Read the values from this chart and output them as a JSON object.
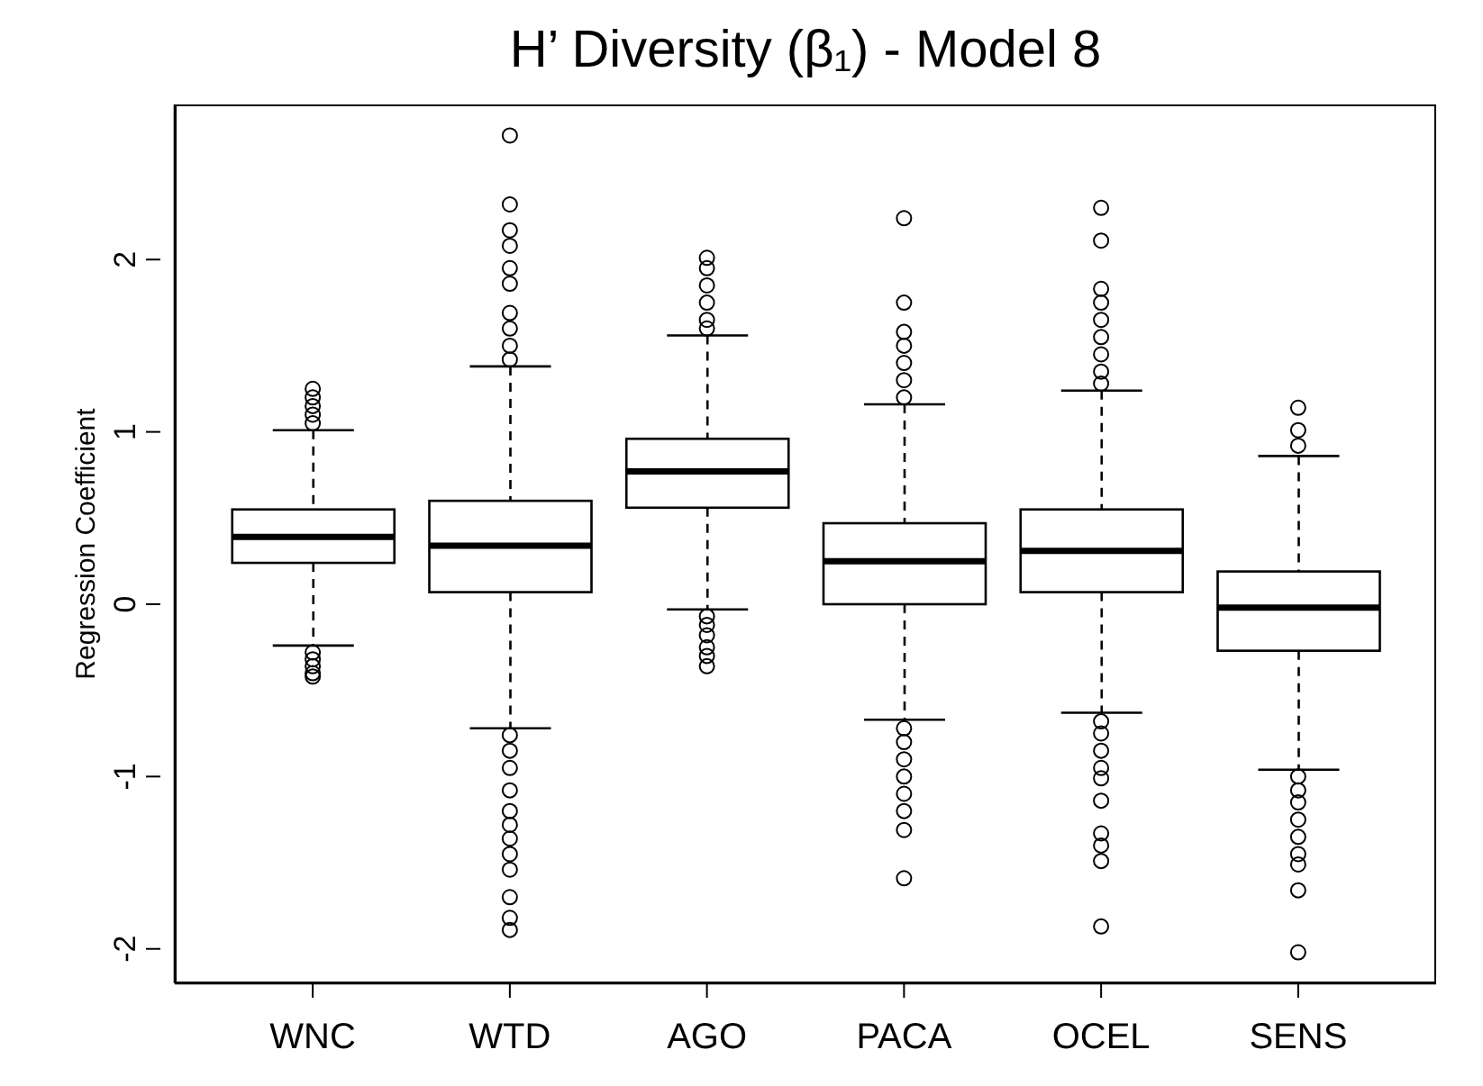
{
  "chart_data": {
    "type": "box",
    "title": "H’ Diversity (β₁) - Model 8",
    "ylabel": "Regression Coefficient",
    "categories": [
      "WNC",
      "WTD",
      "AGO",
      "PACA",
      "OCEL",
      "SENS"
    ],
    "boxes": [
      {
        "low": -0.24,
        "q1": 0.24,
        "median": 0.39,
        "q3": 0.55,
        "high": 1.01,
        "outliers": [
          1.05,
          1.1,
          1.15,
          1.2,
          1.25,
          -0.28,
          -0.32,
          -0.36,
          -0.4,
          -0.42
        ]
      },
      {
        "low": -0.72,
        "q1": 0.07,
        "median": 0.34,
        "q3": 0.6,
        "high": 1.38,
        "outliers": [
          2.72,
          2.32,
          2.17,
          2.08,
          1.95,
          1.86,
          1.69,
          1.6,
          1.5,
          1.42,
          -0.76,
          -0.85,
          -0.95,
          -1.08,
          -1.2,
          -1.28,
          -1.36,
          -1.45,
          -1.54,
          -1.7,
          -1.82,
          -1.89
        ]
      },
      {
        "low": -0.03,
        "q1": 0.56,
        "median": 0.77,
        "q3": 0.96,
        "high": 1.56,
        "outliers": [
          2.01,
          1.95,
          1.85,
          1.75,
          1.65,
          1.6,
          -0.07,
          -0.12,
          -0.18,
          -0.25,
          -0.3,
          -0.36
        ]
      },
      {
        "low": -0.67,
        "q1": 0.0,
        "median": 0.25,
        "q3": 0.47,
        "high": 1.16,
        "outliers": [
          2.24,
          1.75,
          1.58,
          1.5,
          1.4,
          1.3,
          1.2,
          -0.72,
          -0.8,
          -0.9,
          -1.0,
          -1.1,
          -1.2,
          -1.31,
          -1.59
        ]
      },
      {
        "low": -0.63,
        "q1": 0.07,
        "median": 0.31,
        "q3": 0.55,
        "high": 1.24,
        "outliers": [
          2.3,
          2.11,
          1.83,
          1.75,
          1.65,
          1.55,
          1.45,
          1.35,
          1.28,
          -0.68,
          -0.75,
          -0.85,
          -0.95,
          -1.01,
          -1.14,
          -1.33,
          -1.4,
          -1.49,
          -1.87
        ]
      },
      {
        "low": -0.96,
        "q1": -0.27,
        "median": -0.02,
        "q3": 0.19,
        "high": 0.86,
        "outliers": [
          1.14,
          1.01,
          0.92,
          -1.0,
          -1.08,
          -1.15,
          -1.25,
          -1.35,
          -1.45,
          -1.51,
          -1.66,
          -2.02
        ]
      }
    ],
    "ylim": [
      -2.2,
      2.9
    ],
    "yticks": [
      -2,
      -1,
      0,
      1,
      2
    ],
    "grid": false,
    "legend": false
  }
}
